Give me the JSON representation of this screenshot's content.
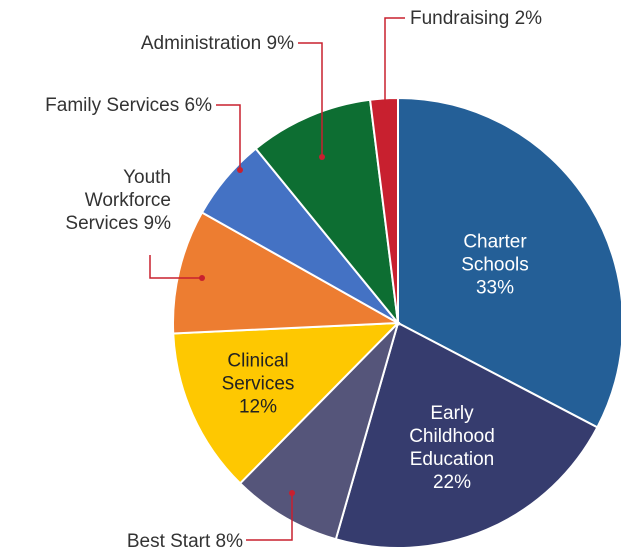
{
  "chart_data": {
    "type": "pie",
    "categories": [
      "Charter Schools",
      "Early Childhood Education",
      "Best Start",
      "Clinical Services",
      "Youth Workforce Services",
      "Family Services",
      "Administration",
      "Fundraising"
    ],
    "values": [
      33,
      22,
      8,
      12,
      9,
      6,
      9,
      2
    ],
    "value_labels": [
      "33%",
      "22%",
      "8%",
      "12%",
      "9%",
      "6%",
      "9%",
      "2%"
    ],
    "colors": [
      "#245f97",
      "#363c6e",
      "#55557a",
      "#fec801",
      "#ed7d31",
      "#4472c4",
      "#0d6e32",
      "#c8202f"
    ]
  }
}
